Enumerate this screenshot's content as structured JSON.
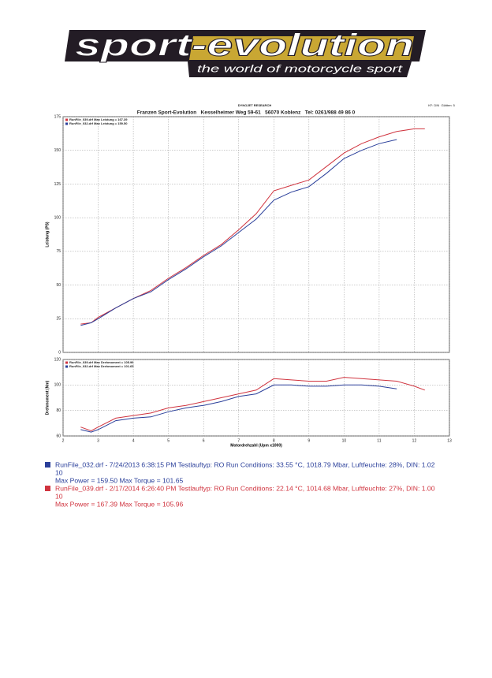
{
  "logo": {
    "title": "sport-evolution",
    "tagline": "the world of motorcycle sport"
  },
  "header": {
    "company": "DYNOJET RESEARCH",
    "address": "Franzen Sport-Evolution   Kesselheimer Weg 59-61   56070 Koblenz   Tel: 0261/988 49 86 0",
    "settings": "KF: DIN  Glätten: 5"
  },
  "chart_data": [
    {
      "type": "line",
      "ylabel": "Leistung (PS)",
      "x": [
        2.5,
        2.8,
        3,
        3.5,
        4,
        4.5,
        5,
        5.5,
        6,
        6.5,
        7,
        7.5,
        8,
        8.5,
        9,
        9.5,
        10,
        10.5,
        11,
        11.5,
        12,
        12.3
      ],
      "series": [
        {
          "name": "RunFile_039.drf Max Leistung = 167.39",
          "color": "#d0343f",
          "values": [
            21,
            22,
            26,
            33,
            40,
            46,
            55,
            63,
            72,
            80,
            91,
            103,
            120,
            124,
            128,
            138,
            148,
            155,
            160,
            164,
            166,
            166
          ]
        },
        {
          "name": "RunFile_032.drf Max Leistung = 159.50",
          "color": "#2a3f9a",
          "values": [
            20,
            22,
            25,
            33,
            40,
            45,
            54,
            62,
            71,
            79,
            89,
            99,
            113,
            119,
            123,
            133,
            144,
            150,
            155,
            158,
            null,
            null
          ]
        }
      ],
      "xlim": [
        2,
        13
      ],
      "xticks": [
        2,
        3,
        4,
        5,
        6,
        7,
        8,
        9,
        10,
        11,
        12,
        13
      ],
      "ylim": [
        0,
        175
      ],
      "yticks": [
        0,
        25,
        50,
        75,
        100,
        125,
        150,
        175
      ],
      "grid": true
    },
    {
      "type": "line",
      "ylabel": "Drehmoment (Nm)",
      "xlabel": "Motordrehzahl (Upm x1000)",
      "x": [
        2.5,
        2.8,
        3,
        3.5,
        4,
        4.5,
        5,
        5.5,
        6,
        6.5,
        7,
        7.5,
        8,
        8.5,
        9,
        9.5,
        10,
        10.5,
        11,
        11.5,
        12,
        12.3
      ],
      "series": [
        {
          "name": "RunFile_039.drf Max Drehmoment = 105.96",
          "color": "#d0343f",
          "values": [
            67,
            64,
            67,
            74,
            76,
            78,
            82,
            84,
            87,
            90,
            93,
            96,
            105,
            104,
            103,
            103,
            106,
            105,
            104,
            103,
            99,
            96
          ]
        },
        {
          "name": "RunFile_032.drf Max Drehmoment = 101.65",
          "color": "#2a3f9a",
          "values": [
            65,
            63,
            65,
            72,
            74,
            75,
            79,
            82,
            84,
            87,
            91,
            93,
            100,
            100,
            99,
            99,
            100,
            100,
            99,
            97,
            null,
            null
          ]
        }
      ],
      "xlim": [
        2,
        13
      ],
      "xticks": [
        2,
        3,
        4,
        5,
        6,
        7,
        8,
        9,
        10,
        11,
        12,
        13
      ],
      "ylim": [
        60,
        120
      ],
      "yticks": [
        60,
        80,
        100,
        120
      ],
      "grid": true
    }
  ],
  "runs": [
    {
      "color": "#2a3f9a",
      "line1": "RunFile_032.drf - 7/24/2013 6:38:15 PM  Testlauftyp: RO  Run Conditions: 33.55 °C, 1018.79 Mbar,  Luftfeuchte: 28%, DIN: 1.02",
      "line2": "10",
      "line3": "Max Power = 159.50  Max Torque = 101.65"
    },
    {
      "color": "#d0343f",
      "line1": "RunFile_039.drf - 2/17/2014 6:26:40 PM  Testlauftyp: RO  Run Conditions: 22.14 °C, 1014.68 Mbar,  Luftfeuchte: 27%, DIN: 1.00",
      "line2": "10",
      "line3": "Max Power = 167.39  Max Torque = 105.96"
    }
  ]
}
